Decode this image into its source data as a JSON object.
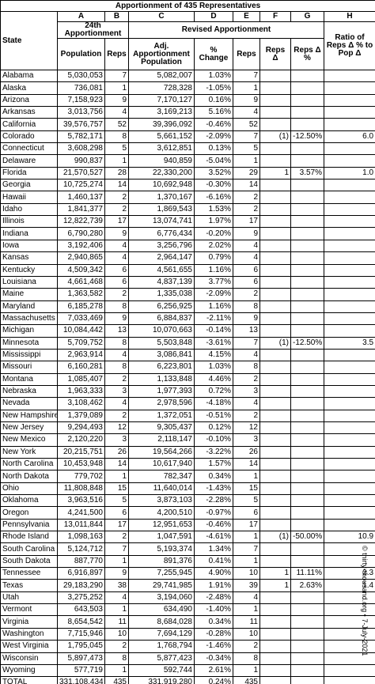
{
  "title": "Apportionment of 435 Representatives",
  "state_header": "State",
  "column_letters": [
    "A",
    "B",
    "C",
    "D",
    "E",
    "F",
    "G",
    "H"
  ],
  "groups": [
    "24th Apportionment",
    "Revised Apportionment"
  ],
  "ratio_header": "Ratio of Reps Δ % to Pop Δ",
  "subheaders": [
    "Population",
    "Reps",
    "Adj. Apportionment Population",
    "% Change",
    "Reps",
    "Reps Δ",
    "Reps Δ %"
  ],
  "rows": [
    [
      "Alabama",
      "5,030,053",
      "7",
      "5,082,007",
      "1.03%",
      "7"
    ],
    [
      "Alaska",
      "736,081",
      "1",
      "728,328",
      "-1.05%",
      "1"
    ],
    [
      "Arizona",
      "7,158,923",
      "9",
      "7,170,127",
      "0.16%",
      "9"
    ],
    [
      "Arkansas",
      "3,013,756",
      "4",
      "3,169,213",
      "5.16%",
      "4"
    ],
    [
      "California",
      "39,576,757",
      "52",
      "39,396,092",
      "-0.46%",
      "52"
    ],
    [
      "Colorado",
      "5,782,171",
      "8",
      "5,661,152",
      "-2.09%",
      "7",
      "(1)",
      "-12.50%",
      "6.0"
    ],
    [
      "Connecticut",
      "3,608,298",
      "5",
      "3,612,851",
      "0.13%",
      "5"
    ],
    [
      "Delaware",
      "990,837",
      "1",
      "940,859",
      "-5.04%",
      "1"
    ],
    [
      "Florida",
      "21,570,527",
      "28",
      "22,330,200",
      "3.52%",
      "29",
      "1",
      "3.57%",
      "1.0"
    ],
    [
      "Georgia",
      "10,725,274",
      "14",
      "10,692,948",
      "-0.30%",
      "14"
    ],
    [
      "Hawaii",
      "1,460,137",
      "2",
      "1,370,167",
      "-6.16%",
      "2"
    ],
    [
      "Idaho",
      "1,841,377",
      "2",
      "1,869,543",
      "1.53%",
      "2"
    ],
    [
      "Illinois",
      "12,822,739",
      "17",
      "13,074,741",
      "1.97%",
      "17"
    ],
    [
      "Indiana",
      "6,790,280",
      "9",
      "6,776,434",
      "-0.20%",
      "9"
    ],
    [
      "Iowa",
      "3,192,406",
      "4",
      "3,256,796",
      "2.02%",
      "4"
    ],
    [
      "Kansas",
      "2,940,865",
      "4",
      "2,964,147",
      "0.79%",
      "4"
    ],
    [
      "Kentucky",
      "4,509,342",
      "6",
      "4,561,655",
      "1.16%",
      "6"
    ],
    [
      "Louisiana",
      "4,661,468",
      "6",
      "4,837,139",
      "3.77%",
      "6"
    ],
    [
      "Maine",
      "1,363,582",
      "2",
      "1,335,038",
      "-2.09%",
      "2"
    ],
    [
      "Maryland",
      "6,185,278",
      "8",
      "6,256,925",
      "1.16%",
      "8"
    ],
    [
      "Massachusetts",
      "7,033,469",
      "9",
      "6,884,837",
      "-2.11%",
      "9"
    ],
    [
      "Michigan",
      "10,084,442",
      "13",
      "10,070,663",
      "-0.14%",
      "13"
    ],
    [
      "Minnesota",
      "5,709,752",
      "8",
      "5,503,848",
      "-3.61%",
      "7",
      "(1)",
      "-12.50%",
      "3.5"
    ],
    [
      "Mississippi",
      "2,963,914",
      "4",
      "3,086,841",
      "4.15%",
      "4"
    ],
    [
      "Missouri",
      "6,160,281",
      "8",
      "6,223,801",
      "1.03%",
      "8"
    ],
    [
      "Montana",
      "1,085,407",
      "2",
      "1,133,848",
      "4.46%",
      "2"
    ],
    [
      "Nebraska",
      "1,963,333",
      "3",
      "1,977,393",
      "0.72%",
      "3"
    ],
    [
      "Nevada",
      "3,108,462",
      "4",
      "2,978,596",
      "-4.18%",
      "4"
    ],
    [
      "New Hampshire",
      "1,379,089",
      "2",
      "1,372,051",
      "-0.51%",
      "2"
    ],
    [
      "New Jersey",
      "9,294,493",
      "12",
      "9,305,437",
      "0.12%",
      "12"
    ],
    [
      "New Mexico",
      "2,120,220",
      "3",
      "2,118,147",
      "-0.10%",
      "3"
    ],
    [
      "New York",
      "20,215,751",
      "26",
      "19,564,266",
      "-3.22%",
      "26"
    ],
    [
      "North Carolina",
      "10,453,948",
      "14",
      "10,617,940",
      "1.57%",
      "14"
    ],
    [
      "North Dakota",
      "779,702",
      "1",
      "782,347",
      "0.34%",
      "1"
    ],
    [
      "Ohio",
      "11,808,848",
      "15",
      "11,640,014",
      "-1.43%",
      "15"
    ],
    [
      "Oklahoma",
      "3,963,516",
      "5",
      "3,873,103",
      "-2.28%",
      "5"
    ],
    [
      "Oregon",
      "4,241,500",
      "6",
      "4,200,510",
      "-0.97%",
      "6"
    ],
    [
      "Pennsylvania",
      "13,011,844",
      "17",
      "12,951,653",
      "-0.46%",
      "17"
    ],
    [
      "Rhode Island",
      "1,098,163",
      "2",
      "1,047,591",
      "-4.61%",
      "1",
      "(1)",
      "-50.00%",
      "10.9"
    ],
    [
      "South Carolina",
      "5,124,712",
      "7",
      "5,193,374",
      "1.34%",
      "7"
    ],
    [
      "South Dakota",
      "887,770",
      "1",
      "891,376",
      "0.41%",
      "1"
    ],
    [
      "Tennessee",
      "6,916,897",
      "9",
      "7,255,945",
      "4.90%",
      "10",
      "1",
      "11.11%",
      "2.3"
    ],
    [
      "Texas",
      "29,183,290",
      "38",
      "29,741,985",
      "1.91%",
      "39",
      "1",
      "2.63%",
      "1.4"
    ],
    [
      "Utah",
      "3,275,252",
      "4",
      "3,194,060",
      "-2.48%",
      "4"
    ],
    [
      "Vermont",
      "643,503",
      "1",
      "634,490",
      "-1.40%",
      "1"
    ],
    [
      "Virginia",
      "8,654,542",
      "11",
      "8,684,028",
      "0.34%",
      "11"
    ],
    [
      "Washington",
      "7,715,946",
      "10",
      "7,694,129",
      "-0.28%",
      "10"
    ],
    [
      "West Virginia",
      "1,795,045",
      "2",
      "1,768,794",
      "-1.46%",
      "2"
    ],
    [
      "Wisconsin",
      "5,897,473",
      "8",
      "5,877,423",
      "-0.34%",
      "8"
    ],
    [
      "Wyoming",
      "577,719",
      "1",
      "592,744",
      "2.61%",
      "1"
    ],
    [
      "TOTAL",
      "331,108,434",
      "435",
      "331,919,280",
      "0.24%",
      "435"
    ]
  ],
  "credit": "© thirty-thousand.org • 7-July-2021"
}
